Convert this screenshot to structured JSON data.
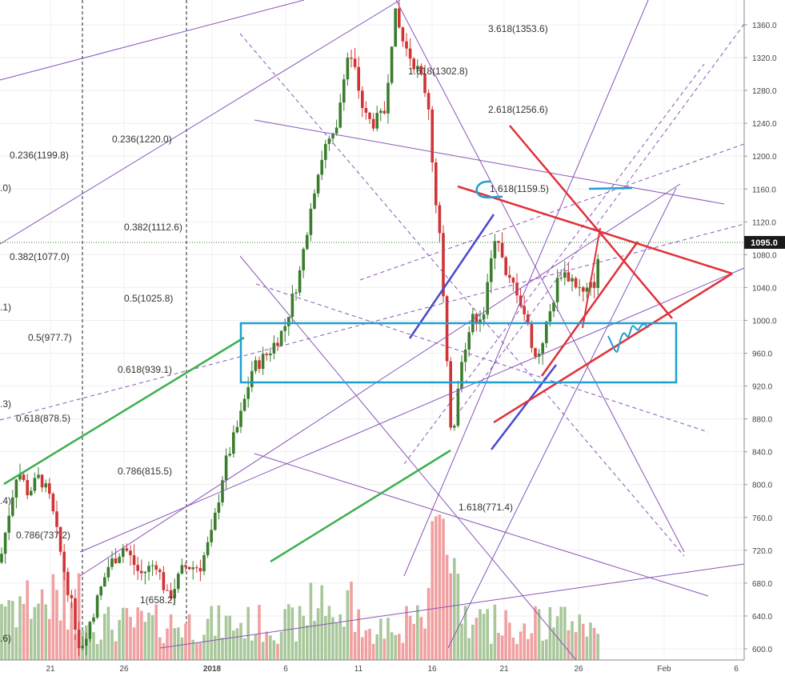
{
  "chart_data": {
    "type": "candlestick",
    "y_ticks": [
      600,
      640,
      680,
      720,
      760,
      800,
      840,
      880,
      920,
      960,
      1000,
      1040,
      1080,
      1120,
      1160,
      1200,
      1240,
      1280,
      1320,
      1360
    ],
    "y_tick_labels": [
      "600.0",
      "640.0",
      "680.0",
      "720.0",
      "760.0",
      "800.0",
      "840.0",
      "880.0",
      "920.0",
      "960.0",
      "1000.0",
      "1040.0",
      "1080.0",
      "1120.0",
      "1160.0",
      "1200.0",
      "1240.0",
      "1280.0",
      "1320.0",
      "1360.0"
    ],
    "ylim": [
      588,
      1375
    ],
    "x_tick_labels": [
      "21",
      "26",
      "2018",
      "6",
      "11",
      "16",
      "21",
      "26",
      "Feb",
      "6"
    ],
    "current_price": 1095.0,
    "current_price_label": "1095.0",
    "grid": true,
    "fib_labels": [
      {
        "text": "3.618(1353.6)",
        "color": "#333333"
      },
      {
        "text": "1.618(1302.8)",
        "color": "#333333"
      },
      {
        "text": "2.618(1256.6)",
        "color": "#333333"
      },
      {
        "text": "0.236(1220.0)",
        "color": "#333333"
      },
      {
        "text": "0.236(1199.8)",
        "color": "#333333"
      },
      {
        "text": "1.618(1159.5)",
        "color": "#333333"
      },
      {
        "text": ".0)",
        "color": "#333333"
      },
      {
        "text": "0.382(1112.6)",
        "color": "#333333"
      },
      {
        "text": "0.382(1077.0)",
        "color": "#333333"
      },
      {
        "text": "0.5(1025.8)",
        "color": "#333333"
      },
      {
        "text": ".1)",
        "color": "#333333"
      },
      {
        "text": "0.5(977.7)",
        "color": "#333333"
      },
      {
        "text": "0.618(939.1)",
        "color": "#333333"
      },
      {
        "text": ".3)",
        "color": "#333333"
      },
      {
        "text": "0.618(878.5)",
        "color": "#333333"
      },
      {
        "text": "0.786(815.5)",
        "color": "#333333"
      },
      {
        "text": ".4)",
        "color": "#333333"
      },
      {
        "text": "1.618(771.4)",
        "color": "#e03030"
      },
      {
        "text": "0.786(737.2)",
        "color": "#333333"
      },
      {
        "text": "1(658.2)",
        "color": "#333333"
      },
      {
        "text": ".6)",
        "color": "#333333"
      }
    ],
    "colors": {
      "up_candle": "#3a7d2c",
      "down_candle": "#d03434",
      "up_volume": "#a8c79a",
      "down_volume": "#f0a0a0",
      "purple_line": "#8a55b8",
      "red_triangle": "#e0303a",
      "blue_channel": "#4a4ad0",
      "green_line": "#3cb050",
      "cyan_box": "#1fa0d0",
      "price_tag": "#1a1a1a"
    }
  }
}
